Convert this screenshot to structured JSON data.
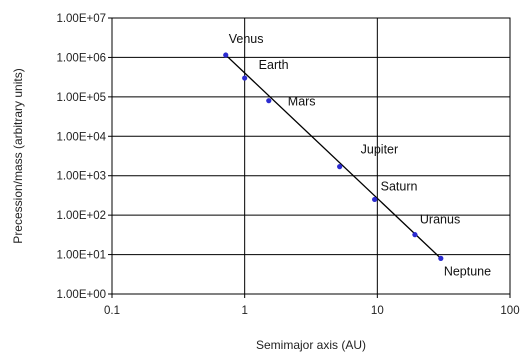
{
  "chart_data": {
    "type": "scatter",
    "title": "",
    "xlabel": "Semimajor axis (AU)",
    "ylabel": "Precession/mass (arbitrary units)",
    "x_scale": "log",
    "y_scale": "log",
    "xlim": [
      0.1,
      100
    ],
    "ylim": [
      1,
      10000000
    ],
    "x_ticks": [
      "0.1",
      "1",
      "10",
      "100"
    ],
    "y_ticks": [
      "1.00E+00",
      "1.00E+01",
      "1.00E+02",
      "1.00E+03",
      "1.00E+04",
      "1.00E+05",
      "1.00E+06",
      "1.00E+07"
    ],
    "grid": true,
    "marker_color": "#2b2bd0",
    "line_color": "#000000",
    "points": [
      {
        "label": "Venus",
        "x": 0.72,
        "y": 1150000
      },
      {
        "label": "Earth",
        "x": 1.0,
        "y": 300000
      },
      {
        "label": "Mars",
        "x": 1.52,
        "y": 80000
      },
      {
        "label": "Jupiter",
        "x": 5.2,
        "y": 1700
      },
      {
        "label": "Saturn",
        "x": 9.54,
        "y": 250
      },
      {
        "label": "Uranus",
        "x": 19.2,
        "y": 32
      },
      {
        "label": "Neptune",
        "x": 30.1,
        "y": 8
      }
    ],
    "trendline": {
      "x": [
        0.72,
        30.1
      ],
      "y": [
        1150000,
        8
      ]
    }
  }
}
